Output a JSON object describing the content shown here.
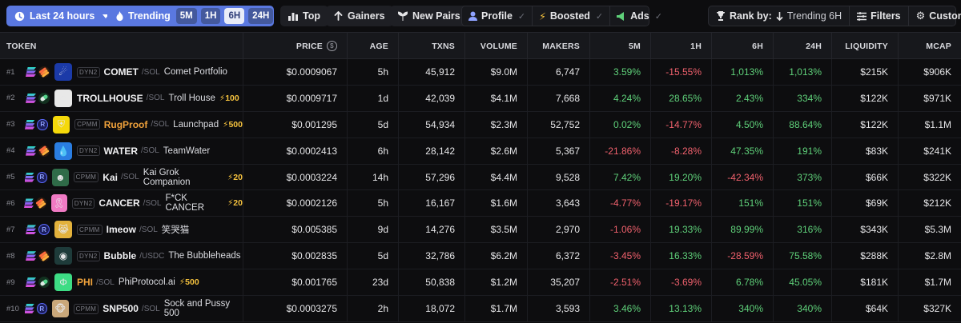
{
  "toolbar": {
    "timeframe_label": "Last 24 hours",
    "trending_label": "Trending",
    "trending_tf": [
      "5M",
      "1H",
      "6H",
      "24H"
    ],
    "trending_active": "6H",
    "top_label": "Top",
    "gainers_label": "Gainers",
    "new_pairs_label": "New Pairs",
    "profile_label": "Profile",
    "boosted_label": "Boosted",
    "ads_label": "Ads",
    "rank_by_label": "Rank by:",
    "rank_by_value": "Trending 6H",
    "filters_label": "Filters",
    "customize_label": "Customize"
  },
  "columns": {
    "token": "TOKEN",
    "price": "PRICE",
    "age": "AGE",
    "txns": "TXNS",
    "volume": "VOLUME",
    "makers": "MAKERS",
    "m5": "5M",
    "h1": "1H",
    "h6": "6H",
    "h24": "24H",
    "liquidity": "LIQUIDITY",
    "mcap": "MCAP"
  },
  "colors": {
    "positive": "#5fd17a",
    "negative": "#f0616d",
    "accent": "#5a78e0",
    "boost": "#f5c23e"
  },
  "rows": [
    {
      "rank": "#1",
      "dex": "meteora",
      "pool": "DYN2",
      "avatar_icon": "comet-logo-icon",
      "avatar_bg": "#1b3aa8",
      "avatar_glyph": "☄",
      "symbol": "COMET",
      "symbol_orange": false,
      "quote": "/SOL",
      "name": "Comet Portfolio",
      "boost": "",
      "price": "$0.0009067",
      "age": "5h",
      "txns": "45,912",
      "volume": "$9.0M",
      "makers": "6,747",
      "m5": "3.59%",
      "h1": "-15.55%",
      "h6": "1,013%",
      "h24": "1,013%",
      "liquidity": "$215K",
      "mcap": "$906K"
    },
    {
      "rank": "#2",
      "dex": "pump",
      "pool": "",
      "avatar_icon": "troll-face-icon",
      "avatar_bg": "#e8e8e8",
      "avatar_glyph": "☺",
      "symbol": "TROLLHOUSE",
      "symbol_orange": false,
      "quote": "/SOL",
      "name": "Troll House",
      "boost": "⚡100",
      "price": "$0.0009717",
      "age": "1d",
      "txns": "42,039",
      "volume": "$4.1M",
      "makers": "7,668",
      "m5": "4.24%",
      "h1": "28.65%",
      "h6": "2.43%",
      "h24": "334%",
      "liquidity": "$122K",
      "mcap": "$971K"
    },
    {
      "rank": "#3",
      "dex": "raydium",
      "pool": "CPMM",
      "avatar_icon": "rugproof-logo-icon",
      "avatar_bg": "#f5d90a",
      "avatar_glyph": "⛨",
      "symbol": "RugProof",
      "symbol_orange": true,
      "quote": "/SOL",
      "name": "Launchpad",
      "boost": "⚡500",
      "price": "$0.001295",
      "age": "5d",
      "txns": "54,934",
      "volume": "$2.3M",
      "makers": "52,752",
      "m5": "0.02%",
      "h1": "-14.77%",
      "h6": "4.50%",
      "h24": "88.64%",
      "liquidity": "$122K",
      "mcap": "$1.1M"
    },
    {
      "rank": "#4",
      "dex": "meteora",
      "pool": "DYN2",
      "avatar_icon": "water-drop-icon",
      "avatar_bg": "#2a7de1",
      "avatar_glyph": "💧",
      "symbol": "WATER",
      "symbol_orange": false,
      "quote": "/SOL",
      "name": "TeamWater",
      "boost": "",
      "price": "$0.0002413",
      "age": "6h",
      "txns": "28,142",
      "volume": "$2.6M",
      "makers": "5,367",
      "m5": "-21.86%",
      "h1": "-8.28%",
      "h6": "47.35%",
      "h24": "191%",
      "liquidity": "$83K",
      "mcap": "$241K"
    },
    {
      "rank": "#5",
      "dex": "raydium",
      "pool": "CPMM",
      "avatar_icon": "kai-avatar-icon",
      "avatar_bg": "#2f6b48",
      "avatar_glyph": "☻",
      "symbol": "Kai",
      "symbol_orange": false,
      "quote": "/SOL",
      "name": "Kai Grok Companion",
      "boost": "⚡20",
      "price": "$0.0003224",
      "age": "14h",
      "txns": "57,296",
      "volume": "$4.4M",
      "makers": "9,528",
      "m5": "7.42%",
      "h1": "19.20%",
      "h6": "-42.34%",
      "h24": "373%",
      "liquidity": "$66K",
      "mcap": "$322K"
    },
    {
      "rank": "#6",
      "dex": "meteora",
      "pool": "DYN2",
      "avatar_icon": "pink-ribbon-icon",
      "avatar_bg": "#f07ac4",
      "avatar_glyph": "🎗",
      "symbol": "CANCER",
      "symbol_orange": false,
      "quote": "/SOL",
      "name": "F*CK CANCER",
      "boost": "⚡20",
      "price": "$0.0002126",
      "age": "5h",
      "txns": "16,167",
      "volume": "$1.6M",
      "makers": "3,643",
      "m5": "-4.77%",
      "h1": "-19.17%",
      "h6": "151%",
      "h24": "151%",
      "liquidity": "$69K",
      "mcap": "$212K"
    },
    {
      "rank": "#7",
      "dex": "raydium",
      "pool": "CPMM",
      "avatar_icon": "crying-cat-icon",
      "avatar_bg": "#e3b23c",
      "avatar_glyph": "😹",
      "symbol": "Imeow",
      "symbol_orange": false,
      "quote": "/SOL",
      "name": "笑哭猫",
      "boost": "",
      "price": "$0.005385",
      "age": "9d",
      "txns": "14,276",
      "volume": "$3.5M",
      "makers": "2,970",
      "m5": "-1.06%",
      "h1": "19.33%",
      "h6": "89.99%",
      "h24": "316%",
      "liquidity": "$343K",
      "mcap": "$5.3M"
    },
    {
      "rank": "#8",
      "dex": "meteora",
      "pool": "DYN2",
      "avatar_icon": "bubble-logo-icon",
      "avatar_bg": "#1e3b3a",
      "avatar_glyph": "◉",
      "symbol": "Bubble",
      "symbol_orange": false,
      "quote": "/USDC",
      "name": "The Bubbleheads",
      "boost": "",
      "price": "$0.002835",
      "age": "5d",
      "txns": "32,786",
      "volume": "$6.2M",
      "makers": "6,372",
      "m5": "-3.45%",
      "h1": "16.33%",
      "h6": "-28.59%",
      "h24": "75.58%",
      "liquidity": "$288K",
      "mcap": "$2.8M"
    },
    {
      "rank": "#9",
      "dex": "pump",
      "pool": "",
      "avatar_icon": "phi-logo-icon",
      "avatar_bg": "#3ddc84",
      "avatar_glyph": "Φ",
      "symbol": "PHI",
      "symbol_orange": true,
      "quote": "/SOL",
      "name": "PhiProtocol.ai",
      "boost": "⚡500",
      "price": "$0.001765",
      "age": "23d",
      "txns": "50,838",
      "volume": "$1.2M",
      "makers": "35,207",
      "m5": "-2.51%",
      "h1": "-3.69%",
      "h6": "6.78%",
      "h24": "45.05%",
      "liquidity": "$181K",
      "mcap": "$1.7M"
    },
    {
      "rank": "#10",
      "dex": "raydium",
      "pool": "CPMM",
      "avatar_icon": "monkey-avatar-icon",
      "avatar_bg": "#c9a77a",
      "avatar_glyph": "🐵",
      "symbol": "SNP500",
      "symbol_orange": false,
      "quote": "/SOL",
      "name": "Sock and Pussy 500",
      "boost": "",
      "price": "$0.0003275",
      "age": "2h",
      "txns": "18,072",
      "volume": "$1.7M",
      "makers": "3,593",
      "m5": "3.46%",
      "h1": "13.13%",
      "h6": "340%",
      "h24": "340%",
      "liquidity": "$64K",
      "mcap": "$327K"
    }
  ]
}
